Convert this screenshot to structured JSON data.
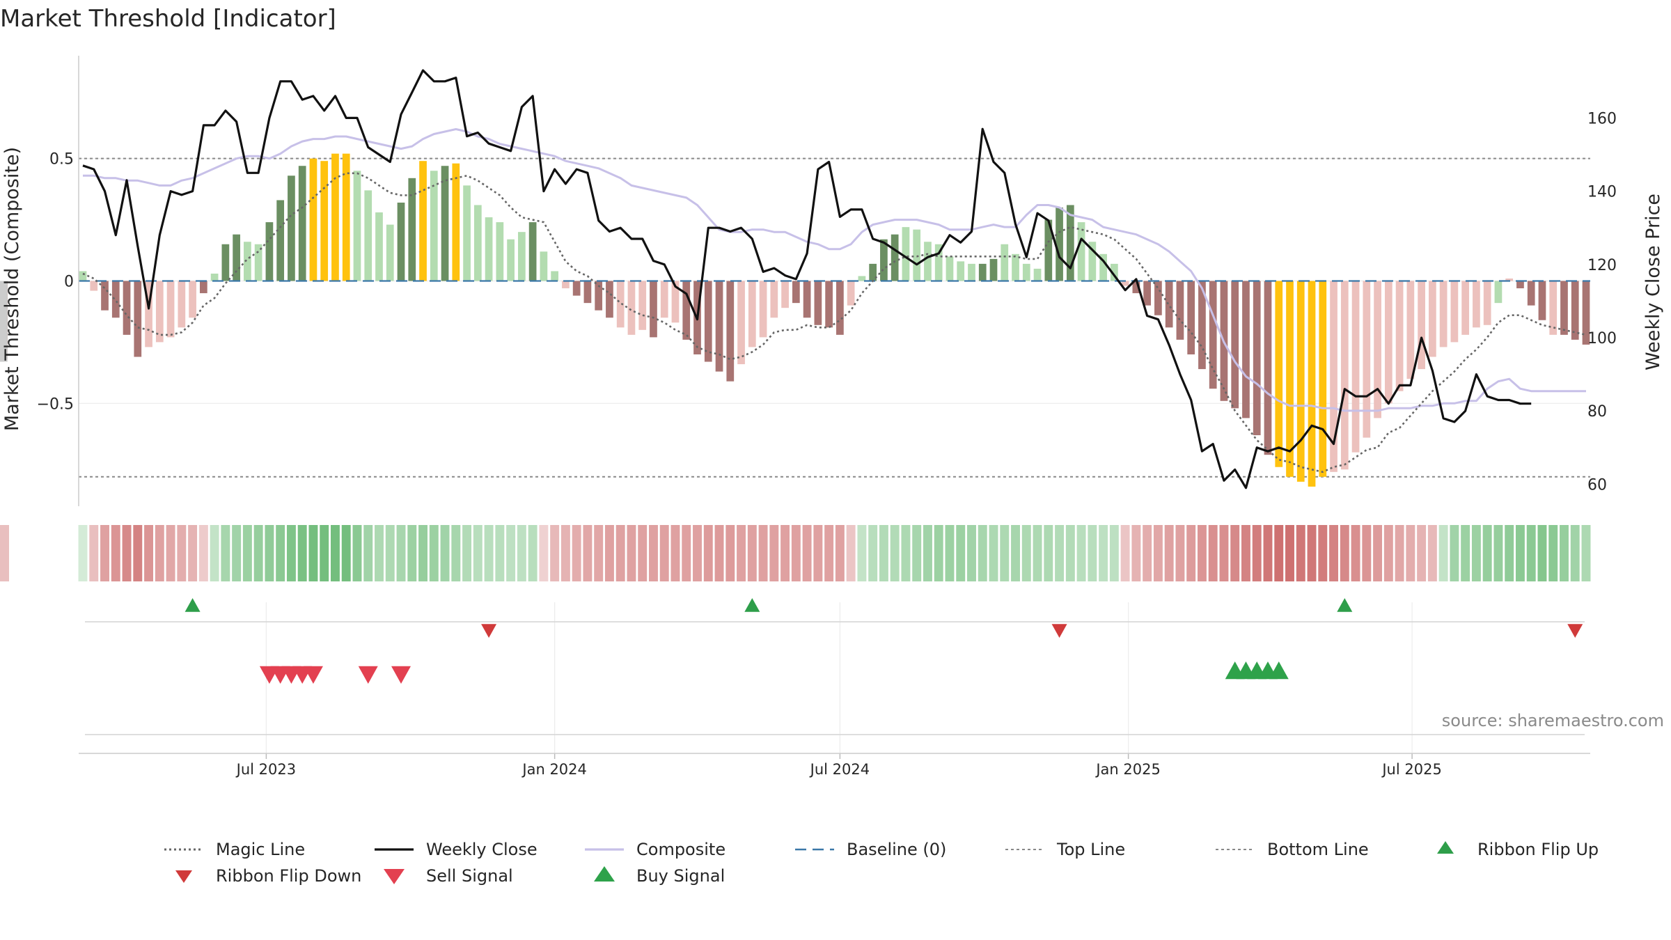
{
  "chart_data": {
    "type": "bar",
    "title": "Market Threshold [Indicator]",
    "ylabel": "Market Threshold (Composite)",
    "y2label": "Weekly Close Price",
    "source": "source: sharemaestro.com",
    "ylim": [
      -0.92,
      0.92
    ],
    "y2lim": [
      54,
      177
    ],
    "yticks": [
      0.5,
      0,
      -0.5
    ],
    "ytick_labels": [
      "0.5",
      "0",
      "−0.5"
    ],
    "y2ticks": [
      160,
      140,
      120,
      100,
      80,
      60
    ],
    "y2tick_labels": [
      "160",
      "140",
      "120",
      "100",
      "80",
      "60"
    ],
    "x_range": [
      "2023-03-06",
      "2025-10-20"
    ],
    "xticks": [
      "2023-07-01",
      "2024-01-01",
      "2024-07-01",
      "2025-01-01",
      "2025-07-01"
    ],
    "xtick_labels": [
      "Jul 2023",
      "Jan 2024",
      "Jul 2024",
      "Jan 2025",
      "Jul 2025"
    ],
    "top_line": 0.5,
    "bottom_line": -0.8,
    "baseline": 0,
    "grid": true,
    "legend_position": "bottom",
    "dates": [
      "2023-03-06",
      "2023-03-13",
      "2023-03-20",
      "2023-03-27",
      "2023-04-03",
      "2023-04-10",
      "2023-04-17",
      "2023-04-24",
      "2023-05-01",
      "2023-05-08",
      "2023-05-15",
      "2023-05-22",
      "2023-05-29",
      "2023-06-05",
      "2023-06-12",
      "2023-06-19",
      "2023-06-26",
      "2023-07-03",
      "2023-07-10",
      "2023-07-17",
      "2023-07-24",
      "2023-07-31",
      "2023-08-07",
      "2023-08-14",
      "2023-08-21",
      "2023-08-28",
      "2023-09-04",
      "2023-09-11",
      "2023-09-18",
      "2023-09-25",
      "2023-10-02",
      "2023-10-09",
      "2023-10-16",
      "2023-10-23",
      "2023-10-30",
      "2023-11-06",
      "2023-11-13",
      "2023-11-20",
      "2023-11-27",
      "2023-12-04",
      "2023-12-11",
      "2023-12-18",
      "2023-12-25",
      "2024-01-01",
      "2024-01-08",
      "2024-01-15",
      "2024-01-22",
      "2024-01-29",
      "2024-02-05",
      "2024-02-12",
      "2024-02-19",
      "2024-02-26",
      "2024-03-04",
      "2024-03-11",
      "2024-03-18",
      "2024-03-25",
      "2024-04-01",
      "2024-04-08",
      "2024-04-15",
      "2024-04-22",
      "2024-04-29",
      "2024-05-06",
      "2024-05-13",
      "2024-05-20",
      "2024-05-27",
      "2024-06-03",
      "2024-06-10",
      "2024-06-17",
      "2024-06-24",
      "2024-07-01",
      "2024-07-08",
      "2024-07-15",
      "2024-07-22",
      "2024-07-29",
      "2024-08-05",
      "2024-08-12",
      "2024-08-19",
      "2024-08-26",
      "2024-09-02",
      "2024-09-09",
      "2024-09-16",
      "2024-09-23",
      "2024-09-30",
      "2024-10-07",
      "2024-10-14",
      "2024-10-21",
      "2024-10-28",
      "2024-11-04",
      "2024-11-11",
      "2024-11-18",
      "2024-11-25",
      "2024-12-02",
      "2024-12-09",
      "2024-12-16",
      "2024-12-23",
      "2024-12-30",
      "2025-01-06",
      "2025-01-13",
      "2025-01-20",
      "2025-01-27",
      "2025-02-03",
      "2025-02-10",
      "2025-02-17",
      "2025-02-24",
      "2025-03-03",
      "2025-03-10",
      "2025-03-17",
      "2025-03-24",
      "2025-03-31",
      "2025-04-07",
      "2025-04-14",
      "2025-04-21",
      "2025-04-28",
      "2025-05-05",
      "2025-05-12",
      "2025-05-19",
      "2025-05-26",
      "2025-06-02",
      "2025-06-09",
      "2025-06-16",
      "2025-06-23",
      "2025-06-30",
      "2025-07-07",
      "2025-07-14",
      "2025-07-21",
      "2025-07-28",
      "2025-08-04",
      "2025-08-11",
      "2025-08-18",
      "2025-08-25",
      "2025-09-01",
      "2025-09-08",
      "2025-09-15",
      "2025-09-22",
      "2025-09-29",
      "2025-10-06",
      "2025-10-13",
      "2025-10-20"
    ],
    "composite_bars": [
      0.04,
      -0.04,
      -0.12,
      -0.15,
      -0.22,
      -0.31,
      -0.27,
      -0.25,
      -0.23,
      -0.19,
      -0.15,
      -0.05,
      0.03,
      0.15,
      0.19,
      0.16,
      0.15,
      0.24,
      0.33,
      0.43,
      0.47,
      0.5,
      0.49,
      0.52,
      0.52,
      0.45,
      0.37,
      0.28,
      0.23,
      0.32,
      0.42,
      0.49,
      0.45,
      0.47,
      0.48,
      0.39,
      0.31,
      0.26,
      0.24,
      0.17,
      0.2,
      0.24,
      0.12,
      0.04,
      -0.03,
      -0.06,
      -0.09,
      -0.12,
      -0.15,
      -0.19,
      -0.22,
      -0.2,
      -0.23,
      -0.15,
      -0.17,
      -0.24,
      -0.3,
      -0.33,
      -0.37,
      -0.41,
      -0.34,
      -0.27,
      -0.23,
      -0.15,
      -0.11,
      -0.09,
      -0.15,
      -0.18,
      -0.19,
      -0.22,
      -0.1,
      0.02,
      0.07,
      0.17,
      0.19,
      0.22,
      0.21,
      0.16,
      0.15,
      0.1,
      0.08,
      0.07,
      0.07,
      0.09,
      0.15,
      0.11,
      0.07,
      0.05,
      0.25,
      0.3,
      0.31,
      0.24,
      0.16,
      0.11,
      0.07,
      -0.02,
      -0.05,
      -0.1,
      -0.14,
      -0.19,
      -0.24,
      -0.3,
      -0.36,
      -0.44,
      -0.49,
      -0.52,
      -0.56,
      -0.63,
      -0.71,
      -0.76,
      -0.8,
      -0.82,
      -0.84,
      -0.8,
      -0.78,
      -0.77,
      -0.7,
      -0.64,
      -0.56,
      -0.5,
      -0.45,
      -0.4,
      -0.36,
      -0.31,
      -0.27,
      -0.25,
      -0.22,
      -0.19,
      -0.18,
      -0.09,
      0.01,
      -0.03,
      -0.1,
      -0.16,
      -0.22,
      -0.22,
      -0.24,
      -0.26,
      -0.29,
      -0.32,
      -0.33
    ],
    "bar_classes": [
      "lpos",
      "lneg",
      "dneg",
      "dneg",
      "dneg",
      "dneg",
      "lneg",
      "lneg",
      "lneg",
      "lneg",
      "lneg",
      "dneg",
      "lpos",
      "dpos",
      "dpos",
      "lpos",
      "lpos",
      "dpos",
      "dpos",
      "dpos",
      "dpos",
      "gold",
      "gold",
      "gold",
      "gold",
      "lpos",
      "lpos",
      "lpos",
      "lpos",
      "dpos",
      "dpos",
      "gold",
      "lpos",
      "dpos",
      "gold",
      "lpos",
      "lpos",
      "lpos",
      "lpos",
      "lpos",
      "lpos",
      "dpos",
      "lpos",
      "lpos",
      "lneg",
      "dneg",
      "dneg",
      "dneg",
      "dneg",
      "lneg",
      "lneg",
      "lneg",
      "dneg",
      "lneg",
      "lneg",
      "dneg",
      "dneg",
      "dneg",
      "dneg",
      "dneg",
      "lneg",
      "lneg",
      "lneg",
      "lneg",
      "lneg",
      "dneg",
      "dneg",
      "dneg",
      "dneg",
      "dneg",
      "lneg",
      "lpos",
      "dpos",
      "dpos",
      "dpos",
      "lpos",
      "lpos",
      "lpos",
      "lpos",
      "lpos",
      "lpos",
      "lpos",
      "dpos",
      "dpos",
      "lpos",
      "lpos",
      "lpos",
      "lpos",
      "dpos",
      "dpos",
      "dpos",
      "lpos",
      "lpos",
      "lpos",
      "lpos",
      "lneg",
      "dneg",
      "dneg",
      "dneg",
      "dneg",
      "dneg",
      "dneg",
      "dneg",
      "dneg",
      "dneg",
      "dneg",
      "dneg",
      "dneg",
      "dneg",
      "gold",
      "gold",
      "gold",
      "gold",
      "gold",
      "lneg",
      "lneg",
      "lneg",
      "lneg",
      "lneg",
      "lneg",
      "lneg",
      "lneg",
      "lneg",
      "lneg",
      "lneg",
      "lneg",
      "lneg",
      "lneg",
      "lneg",
      "lpos",
      "lneg",
      "dneg",
      "dneg",
      "dneg",
      "lneg",
      "dneg",
      "dneg",
      "dneg",
      "dneg",
      "dneg"
    ],
    "weekly_close": [
      147,
      146,
      140,
      128,
      143,
      125,
      108,
      128,
      140,
      139,
      140,
      158,
      158,
      162,
      159,
      145,
      145,
      160,
      170,
      170,
      165,
      166,
      162,
      166,
      160,
      160,
      152,
      150,
      148,
      161,
      167,
      173,
      170,
      170,
      171,
      155,
      156,
      153,
      152,
      151,
      163,
      166,
      140,
      146,
      142,
      146,
      145,
      132,
      129,
      130,
      127,
      127,
      121,
      120,
      114,
      112,
      105,
      130,
      130,
      129,
      130,
      127,
      118,
      119,
      117,
      116,
      123,
      146,
      148,
      133,
      135,
      135,
      127,
      126,
      124,
      122,
      120,
      122,
      123,
      128,
      126,
      129,
      157,
      148,
      145,
      131,
      122,
      134,
      132,
      122,
      119,
      127,
      124,
      121,
      117,
      113,
      116,
      106,
      105,
      98,
      90,
      83,
      69,
      71,
      61,
      64,
      59,
      70,
      69,
      70,
      69,
      72,
      76,
      75,
      71,
      86,
      84,
      84,
      86,
      82,
      87,
      87,
      100,
      91,
      78,
      77,
      80,
      90,
      84,
      83,
      83,
      82,
      82
    ],
    "composite_line": [
      0.43,
      0.43,
      0.42,
      0.42,
      0.41,
      0.41,
      0.4,
      0.39,
      0.39,
      0.41,
      0.42,
      0.44,
      0.46,
      0.48,
      0.5,
      0.51,
      0.51,
      0.5,
      0.52,
      0.55,
      0.57,
      0.58,
      0.58,
      0.59,
      0.59,
      0.58,
      0.57,
      0.56,
      0.55,
      0.54,
      0.55,
      0.58,
      0.6,
      0.61,
      0.62,
      0.61,
      0.59,
      0.58,
      0.56,
      0.55,
      0.54,
      0.53,
      0.52,
      0.51,
      0.49,
      0.48,
      0.47,
      0.46,
      0.44,
      0.42,
      0.39,
      0.38,
      0.37,
      0.36,
      0.35,
      0.34,
      0.31,
      0.26,
      0.21,
      0.2,
      0.2,
      0.21,
      0.21,
      0.2,
      0.2,
      0.18,
      0.16,
      0.15,
      0.13,
      0.13,
      0.15,
      0.2,
      0.23,
      0.24,
      0.25,
      0.25,
      0.25,
      0.24,
      0.23,
      0.21,
      0.21,
      0.21,
      0.22,
      0.23,
      0.22,
      0.22,
      0.27,
      0.31,
      0.31,
      0.3,
      0.27,
      0.26,
      0.25,
      0.22,
      0.21,
      0.2,
      0.19,
      0.17,
      0.15,
      0.12,
      0.08,
      0.04,
      -0.03,
      -0.14,
      -0.25,
      -0.33,
      -0.39,
      -0.42,
      -0.46,
      -0.49,
      -0.51,
      -0.51,
      -0.51,
      -0.52,
      -0.52,
      -0.53,
      -0.53,
      -0.53,
      -0.53,
      -0.52,
      -0.52,
      -0.52,
      -0.51,
      -0.51,
      -0.5,
      -0.5,
      -0.49,
      -0.49,
      -0.44,
      -0.41,
      -0.4,
      -0.44,
      -0.45,
      -0.45,
      -0.45,
      -0.45,
      -0.45,
      -0.45,
      -0.45,
      -0.46
    ],
    "magic_line": [
      0.03,
      0.01,
      -0.03,
      -0.08,
      -0.14,
      -0.19,
      -0.2,
      -0.22,
      -0.22,
      -0.21,
      -0.17,
      -0.1,
      -0.07,
      -0.01,
      0.04,
      0.09,
      0.12,
      0.17,
      0.22,
      0.27,
      0.3,
      0.34,
      0.38,
      0.42,
      0.44,
      0.44,
      0.42,
      0.39,
      0.36,
      0.35,
      0.35,
      0.37,
      0.39,
      0.41,
      0.42,
      0.43,
      0.41,
      0.38,
      0.35,
      0.3,
      0.26,
      0.25,
      0.24,
      0.16,
      0.08,
      0.04,
      0.02,
      -0.02,
      -0.05,
      -0.09,
      -0.12,
      -0.14,
      -0.15,
      -0.17,
      -0.2,
      -0.22,
      -0.27,
      -0.29,
      -0.3,
      -0.32,
      -0.31,
      -0.29,
      -0.26,
      -0.21,
      -0.2,
      -0.2,
      -0.18,
      -0.19,
      -0.19,
      -0.16,
      -0.12,
      -0.05,
      0.0,
      0.05,
      0.08,
      0.1,
      0.1,
      0.11,
      0.1,
      0.1,
      0.1,
      0.1,
      0.1,
      0.1,
      0.1,
      0.1,
      0.09,
      0.09,
      0.16,
      0.2,
      0.22,
      0.21,
      0.2,
      0.19,
      0.17,
      0.13,
      0.09,
      0.03,
      -0.03,
      -0.1,
      -0.16,
      -0.21,
      -0.27,
      -0.36,
      -0.44,
      -0.53,
      -0.59,
      -0.65,
      -0.69,
      -0.73,
      -0.74,
      -0.76,
      -0.77,
      -0.78,
      -0.76,
      -0.75,
      -0.72,
      -0.69,
      -0.68,
      -0.62,
      -0.6,
      -0.55,
      -0.5,
      -0.45,
      -0.41,
      -0.37,
      -0.32,
      -0.28,
      -0.23,
      -0.17,
      -0.14,
      -0.14,
      -0.16,
      -0.18,
      -0.19,
      -0.2,
      -0.21,
      -0.22,
      -0.24,
      -0.26,
      -0.27
    ],
    "ribbon": [
      0.05,
      -0.2,
      -0.45,
      -0.55,
      -0.65,
      -0.7,
      -0.55,
      -0.45,
      -0.4,
      -0.35,
      -0.3,
      -0.1,
      0.2,
      0.45,
      0.5,
      0.55,
      0.6,
      0.65,
      0.7,
      0.8,
      0.85,
      0.9,
      0.9,
      0.9,
      0.9,
      0.7,
      0.5,
      0.4,
      0.4,
      0.45,
      0.55,
      0.6,
      0.55,
      0.5,
      0.45,
      0.35,
      0.3,
      0.3,
      0.3,
      0.25,
      0.25,
      0.3,
      -0.05,
      -0.25,
      -0.3,
      -0.35,
      -0.4,
      -0.4,
      -0.45,
      -0.45,
      -0.45,
      -0.45,
      -0.45,
      -0.45,
      -0.45,
      -0.45,
      -0.45,
      -0.5,
      -0.5,
      -0.5,
      -0.45,
      -0.45,
      -0.45,
      -0.45,
      -0.45,
      -0.45,
      -0.45,
      -0.45,
      -0.45,
      -0.45,
      -0.15,
      0.2,
      0.3,
      0.35,
      0.35,
      0.4,
      0.45,
      0.5,
      0.55,
      0.55,
      0.55,
      0.5,
      0.45,
      0.4,
      0.4,
      0.45,
      0.4,
      0.4,
      0.4,
      0.35,
      0.35,
      0.3,
      0.3,
      0.25,
      0.25,
      -0.15,
      -0.3,
      -0.35,
      -0.4,
      -0.45,
      -0.45,
      -0.5,
      -0.55,
      -0.6,
      -0.6,
      -0.65,
      -0.7,
      -0.75,
      -0.8,
      -0.85,
      -0.85,
      -0.8,
      -0.8,
      -0.75,
      -0.7,
      -0.65,
      -0.6,
      -0.55,
      -0.5,
      -0.45,
      -0.4,
      -0.35,
      -0.3,
      -0.25,
      0.2,
      0.5,
      0.55,
      0.55,
      0.6,
      0.6,
      0.65,
      0.7,
      0.7,
      0.75,
      0.7,
      0.6,
      0.5,
      0.4,
      0.3,
      0.25,
      -0.15,
      -0.2,
      -0.2
    ],
    "ribbon_flip_up": [
      "2023-05-15",
      "2024-05-06",
      "2025-05-19"
    ],
    "ribbon_flip_down": [
      "2023-11-20",
      "2024-11-18",
      "2025-10-13"
    ],
    "sell_signals": [
      "2023-07-03",
      "2023-07-10",
      "2023-07-17",
      "2023-07-24",
      "2023-07-31",
      "2023-09-04",
      "2023-09-25"
    ],
    "buy_signals": [
      "2025-03-10",
      "2025-03-17",
      "2025-03-24",
      "2025-03-31",
      "2025-04-07"
    ],
    "legend": [
      {
        "name": "Magic Line",
        "kind": "dotted"
      },
      {
        "name": "Weekly Close",
        "kind": "solid-black"
      },
      {
        "name": "Composite",
        "kind": "solid-lavender"
      },
      {
        "name": "Baseline (0)",
        "kind": "dashed-blue"
      },
      {
        "name": "Top Line",
        "kind": "dotted-grey"
      },
      {
        "name": "Bottom Line",
        "kind": "dotted-grey"
      },
      {
        "name": "Ribbon Flip Up",
        "kind": "tri-up-green"
      },
      {
        "name": "Ribbon Flip Down",
        "kind": "tri-down-red"
      },
      {
        "name": "Sell Signal",
        "kind": "tri-down-red2"
      },
      {
        "name": "Buy Signal",
        "kind": "tri-up-green2"
      }
    ],
    "colors": {
      "dark_positive": "#6b8f62",
      "light_positive": "#b3dcb0",
      "dark_negative": "#a87472",
      "light_negative": "#ecc1bd",
      "extreme": "#ffc20e",
      "weekly_close": "#111111",
      "composite": "#c7c0e8",
      "magic_line": "#666666",
      "baseline": "#3b78a8",
      "threshold": "#888888",
      "flip_up": "#2e9e4a",
      "flip_down": "#d03a3a",
      "sell": "#e34050",
      "buy": "#2ea24a"
    }
  }
}
